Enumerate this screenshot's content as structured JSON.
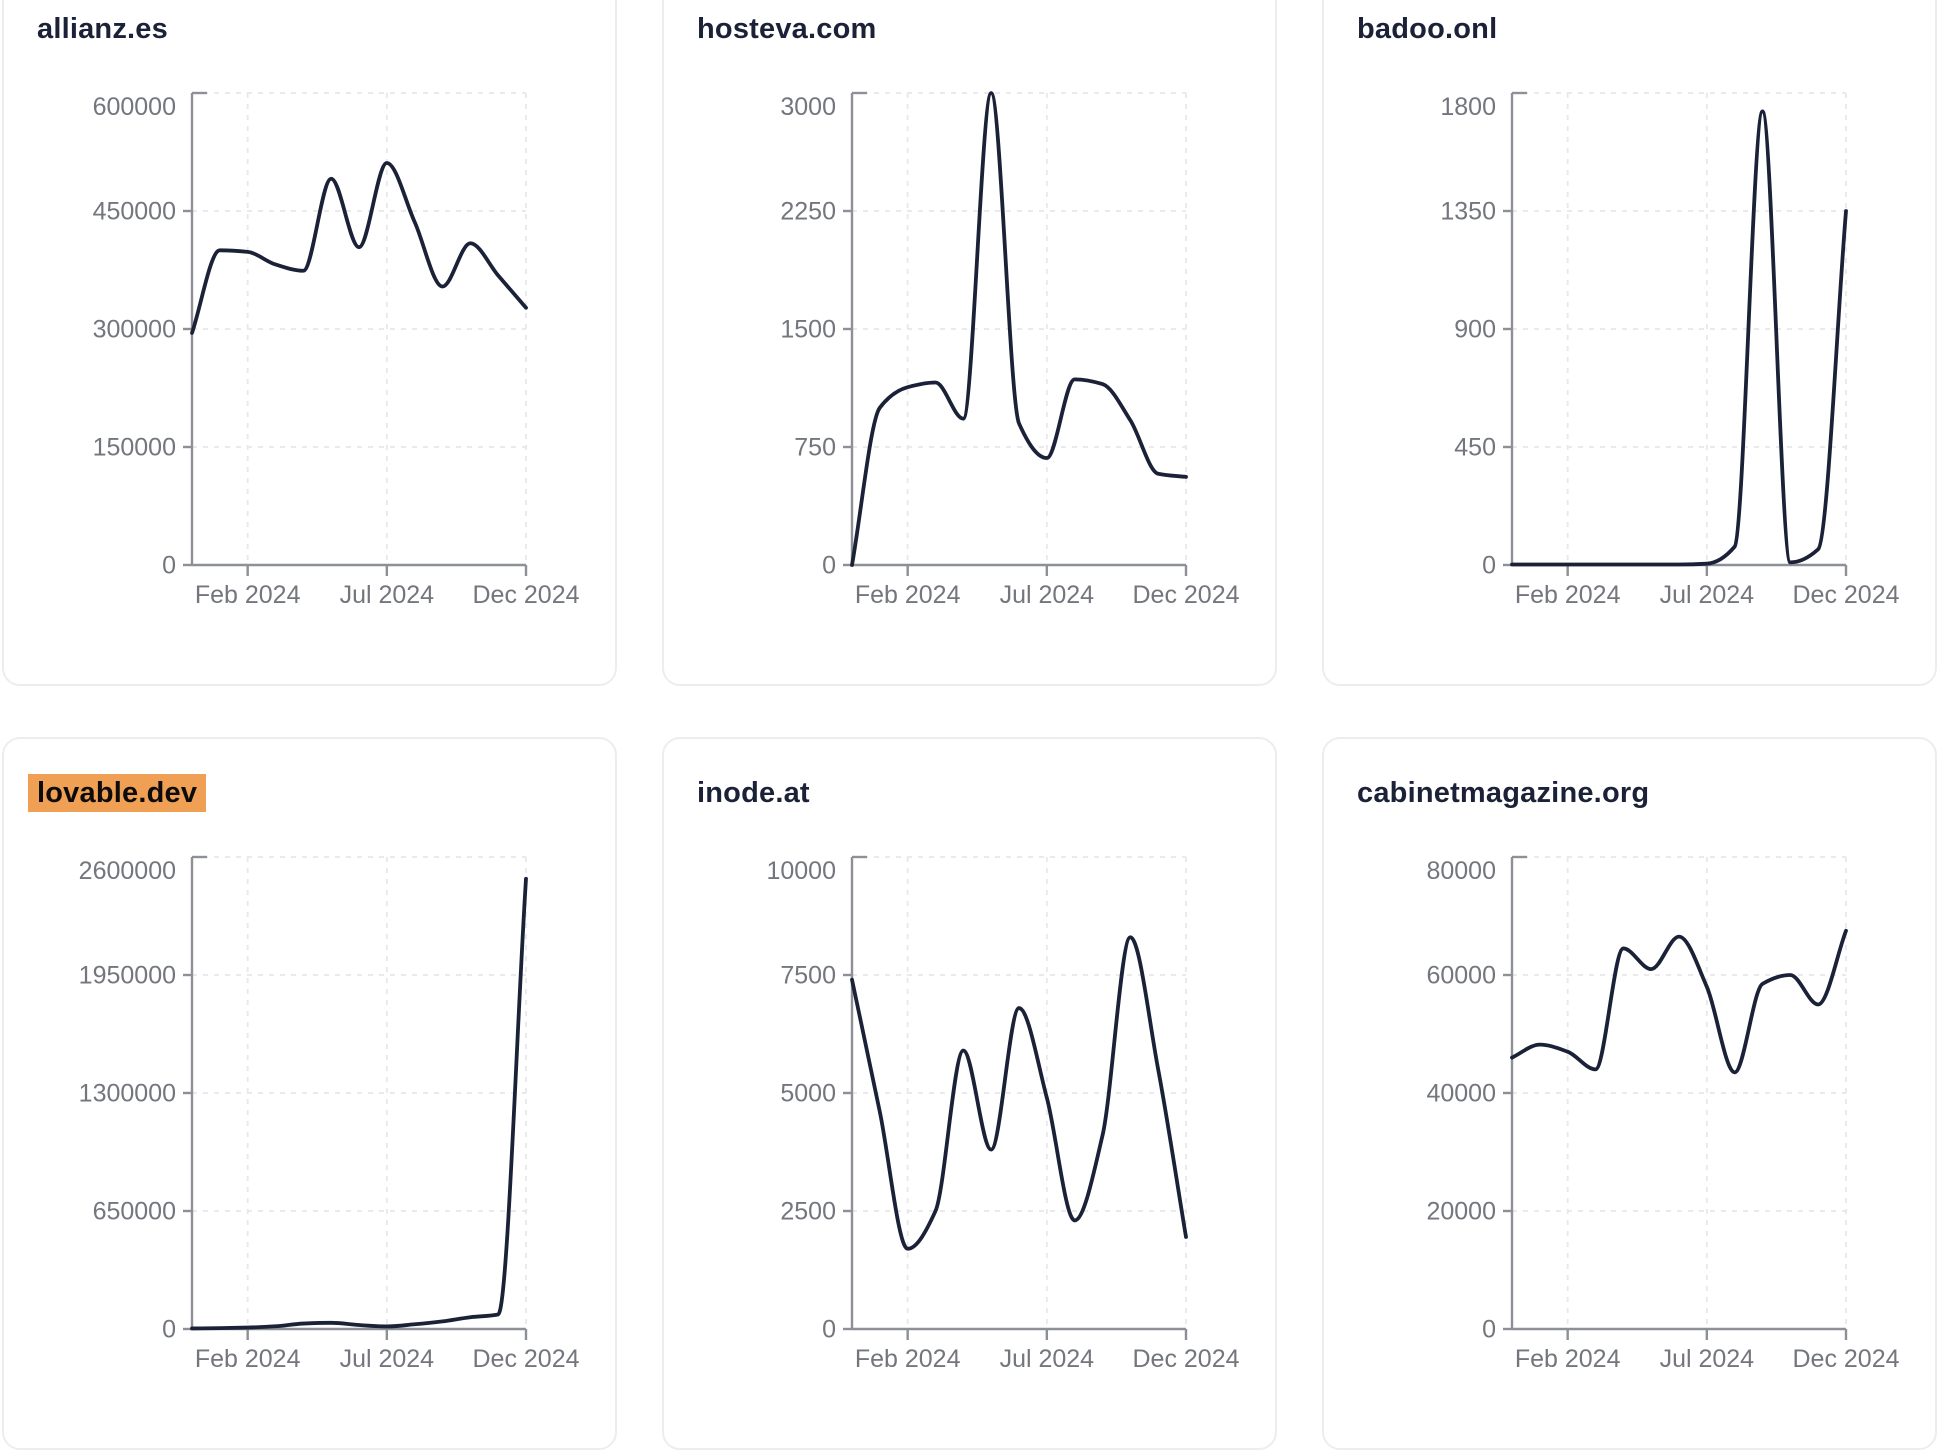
{
  "page": {
    "background": "#ffffff"
  },
  "styles": {
    "title_color": "#1b2238",
    "line_color": "#1b2238",
    "axis_color": "#8d9096",
    "tick_label_color": "#73767d",
    "grid_color": "#e8e8ec",
    "card_border_color": "#ededf1",
    "highlight_bg": "#f0a054",
    "highlight_text": "#0c0c0c"
  },
  "chart_data": [
    {
      "type": "line",
      "title": "allianz.es",
      "highlighted": false,
      "x": [
        "Dec 2023",
        "Jan 2024",
        "Feb 2024",
        "Mar 2024",
        "Apr 2024",
        "May 2024",
        "Jun 2024",
        "Jul 2024",
        "Aug 2024",
        "Sep 2024",
        "Oct 2024",
        "Nov 2024",
        "Dec 2024"
      ],
      "values": [
        295000,
        400000,
        398000,
        382000,
        374000,
        491000,
        404000,
        511000,
        436000,
        354000,
        409000,
        368000,
        327000
      ],
      "ylim": [
        0,
        600000
      ],
      "yticks": [
        0,
        150000,
        300000,
        450000,
        600000
      ],
      "x_tick_labels": [
        "Feb 2024",
        "Jul 2024",
        "Dec 2024"
      ],
      "x_tick_indices": [
        2,
        7,
        12
      ],
      "grid": true,
      "legend": false
    },
    {
      "type": "line",
      "title": "hosteva.com",
      "highlighted": false,
      "x": [
        "Dec 2023",
        "Jan 2024",
        "Feb 2024",
        "Mar 2024",
        "Apr 2024",
        "May 2024",
        "Jun 2024",
        "Jul 2024",
        "Aug 2024",
        "Sep 2024",
        "Oct 2024",
        "Nov 2024",
        "Dec 2024"
      ],
      "values": [
        0,
        1000,
        1130,
        1160,
        930,
        3000,
        900,
        680,
        1180,
        1150,
        920,
        580,
        560
      ],
      "ylim": [
        0,
        3000
      ],
      "yticks": [
        0,
        750,
        1500,
        2250,
        3000
      ],
      "x_tick_labels": [
        "Feb 2024",
        "Jul 2024",
        "Dec 2024"
      ],
      "x_tick_indices": [
        2,
        7,
        12
      ],
      "grid": true,
      "legend": false
    },
    {
      "type": "line",
      "title": "badoo.onl",
      "highlighted": false,
      "x": [
        "Dec 2023",
        "Jan 2024",
        "Feb 2024",
        "Mar 2024",
        "Apr 2024",
        "May 2024",
        "Jun 2024",
        "Jul 2024",
        "Aug 2024",
        "Sep 2024",
        "Oct 2024",
        "Nov 2024",
        "Dec 2024"
      ],
      "values": [
        2,
        2,
        2,
        2,
        2,
        2,
        2,
        5,
        70,
        1730,
        10,
        60,
        1350
      ],
      "ylim": [
        0,
        1800
      ],
      "yticks": [
        0,
        450,
        900,
        1350,
        1800
      ],
      "x_tick_labels": [
        "Feb 2024",
        "Jul 2024",
        "Dec 2024"
      ],
      "x_tick_indices": [
        2,
        7,
        12
      ],
      "grid": true,
      "legend": false
    },
    {
      "type": "line",
      "title": "lovable.dev",
      "highlighted": true,
      "x": [
        "Dec 2023",
        "Jan 2024",
        "Feb 2024",
        "Mar 2024",
        "Apr 2024",
        "May 2024",
        "Jun 2024",
        "Jul 2024",
        "Aug 2024",
        "Sep 2024",
        "Oct 2024",
        "Nov 2024",
        "Dec 2024"
      ],
      "values": [
        3000,
        5000,
        8000,
        15000,
        30000,
        34000,
        22000,
        14000,
        26000,
        42000,
        65000,
        80000,
        2480000
      ],
      "ylim": [
        0,
        2600000
      ],
      "yticks": [
        0,
        650000,
        1300000,
        1950000,
        2600000
      ],
      "x_tick_labels": [
        "Feb 2024",
        "Jul 2024",
        "Dec 2024"
      ],
      "x_tick_indices": [
        2,
        7,
        12
      ],
      "grid": true,
      "legend": false
    },
    {
      "type": "line",
      "title": "inode.at",
      "highlighted": false,
      "x": [
        "Dec 2023",
        "Jan 2024",
        "Feb 2024",
        "Mar 2024",
        "Apr 2024",
        "May 2024",
        "Jun 2024",
        "Jul 2024",
        "Aug 2024",
        "Sep 2024",
        "Oct 2024",
        "Nov 2024",
        "Dec 2024"
      ],
      "values": [
        7400,
        4600,
        1700,
        2500,
        5900,
        3800,
        6800,
        4900,
        2300,
        4100,
        8300,
        5500,
        1950
      ],
      "ylim": [
        0,
        10000
      ],
      "yticks": [
        0,
        2500,
        5000,
        7500,
        10000
      ],
      "x_tick_labels": [
        "Feb 2024",
        "Jul 2024",
        "Dec 2024"
      ],
      "x_tick_indices": [
        2,
        7,
        12
      ],
      "grid": true,
      "legend": false
    },
    {
      "type": "line",
      "title": "cabinetmagazine.org",
      "highlighted": false,
      "x": [
        "Dec 2023",
        "Jan 2024",
        "Feb 2024",
        "Mar 2024",
        "Apr 2024",
        "May 2024",
        "Jun 2024",
        "Jul 2024",
        "Aug 2024",
        "Sep 2024",
        "Oct 2024",
        "Nov 2024",
        "Dec 2024"
      ],
      "values": [
        46000,
        48200,
        47000,
        44000,
        64500,
        61000,
        66500,
        58000,
        43500,
        58500,
        60000,
        55000,
        67500
      ],
      "ylim": [
        0,
        80000
      ],
      "yticks": [
        0,
        20000,
        40000,
        60000,
        80000
      ],
      "x_tick_labels": [
        "Feb 2024",
        "Jul 2024",
        "Dec 2024"
      ],
      "x_tick_indices": [
        2,
        7,
        12
      ],
      "grid": true,
      "legend": false
    }
  ]
}
